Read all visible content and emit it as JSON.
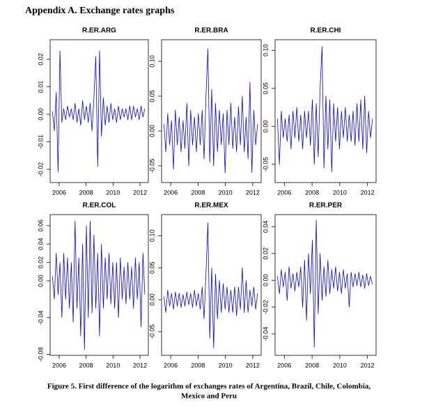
{
  "title": "Appendix A. Exchange rates graphs",
  "caption_lines": [
    "Figure 5. First difference of the logarithm of exchanges rates of Argentina, Brazil, Chile, Colombia,",
    "Mexico and Peru"
  ],
  "chart_data": [
    {
      "type": "line",
      "title": "R.ER.ARG",
      "color": "#0000ff",
      "xlim": [
        2005.33,
        2012.62
      ],
      "xticks": [
        2006,
        2008,
        2010,
        2012
      ],
      "ylim": [
        -0.0248,
        0.0271
      ],
      "yticks": [
        -0.02,
        -0.01,
        {
          "value": 0,
          "label": "0.00"
        },
        0.01,
        0.02
      ],
      "x": [
        2005.5,
        2005.64,
        2005.78,
        2005.92,
        2006.06,
        2006.2,
        2006.34,
        2006.48,
        2006.62,
        2006.76,
        2006.9,
        2007.04,
        2007.18,
        2007.32,
        2007.46,
        2007.6,
        2007.74,
        2007.88,
        2008.02,
        2008.16,
        2008.3,
        2008.44,
        2008.58,
        2008.72,
        2008.86,
        2009.0,
        2009.14,
        2009.28,
        2009.42,
        2009.56,
        2009.7,
        2009.84,
        2009.98,
        2010.12,
        2010.26,
        2010.4,
        2010.54,
        2010.68,
        2010.82,
        2010.96,
        2011.1,
        2011.24,
        2011.38,
        2011.52,
        2011.66,
        2011.8,
        2011.94,
        2012.08,
        2012.22,
        2012.36
      ],
      "values": [
        0.001,
        -0.006,
        0.008,
        -0.021,
        0.023,
        -0.003,
        0.002,
        -0.002,
        0.003,
        -0.001,
        0.002,
        -0.002,
        0.004,
        -0.003,
        0.002,
        -0.004,
        0.005,
        -0.002,
        0.003,
        -0.003,
        0.004,
        -0.006,
        0.006,
        0.021,
        -0.019,
        0.023,
        -0.008,
        0.006,
        -0.004,
        0.003,
        -0.003,
        0.004,
        -0.002,
        0.002,
        -0.003,
        0.003,
        -0.002,
        0.002,
        -0.001,
        0.002,
        -0.002,
        0.003,
        -0.002,
        0.003,
        -0.001,
        0.002,
        -0.002,
        0.003,
        -0.001,
        0.002
      ]
    },
    {
      "type": "line",
      "title": "R.ER.BRA",
      "color": "#0000ff",
      "xlim": [
        2005.33,
        2012.62
      ],
      "xticks": [
        2006,
        2008,
        2010,
        2012
      ],
      "ylim": [
        -0.074,
        0.131
      ],
      "yticks": [
        -0.05,
        {
          "value": 0,
          "label": "0.00"
        },
        0.05,
        {
          "value": 0.1,
          "label": "0.10"
        }
      ],
      "x": [
        2005.5,
        2005.64,
        2005.78,
        2005.92,
        2006.06,
        2006.2,
        2006.34,
        2006.48,
        2006.62,
        2006.76,
        2006.9,
        2007.04,
        2007.18,
        2007.32,
        2007.46,
        2007.6,
        2007.74,
        2007.88,
        2008.02,
        2008.16,
        2008.3,
        2008.44,
        2008.58,
        2008.72,
        2008.86,
        2009.0,
        2009.14,
        2009.28,
        2009.42,
        2009.56,
        2009.7,
        2009.84,
        2009.98,
        2010.12,
        2010.26,
        2010.4,
        2010.54,
        2010.68,
        2010.82,
        2010.96,
        2011.1,
        2011.24,
        2011.38,
        2011.52,
        2011.66,
        2011.8,
        2011.94,
        2012.08,
        2012.22,
        2012.36
      ],
      "values": [
        0.01,
        -0.03,
        0.025,
        -0.02,
        0.015,
        -0.055,
        0.03,
        -0.02,
        0.02,
        -0.03,
        0.015,
        -0.025,
        0.04,
        -0.05,
        0.03,
        -0.02,
        0.02,
        -0.03,
        0.025,
        -0.02,
        0.03,
        -0.04,
        0.05,
        0.118,
        -0.045,
        0.06,
        -0.05,
        0.04,
        -0.03,
        0.03,
        -0.02,
        0.025,
        -0.06,
        0.03,
        -0.02,
        0.04,
        -0.025,
        0.02,
        -0.03,
        0.035,
        -0.02,
        0.05,
        -0.03,
        0.02,
        -0.04,
        0.07,
        -0.06,
        0.03,
        -0.02,
        0.01
      ]
    },
    {
      "type": "line",
      "title": "R.ER.CHI",
      "color": "#0000ff",
      "xlim": [
        2005.33,
        2012.62
      ],
      "xticks": [
        2006,
        2008,
        2010,
        2012
      ],
      "ylim": [
        -0.074,
        0.114
      ],
      "yticks": [
        -0.05,
        {
          "value": 0,
          "label": "0.00"
        },
        0.05,
        {
          "value": 0.1,
          "label": "0.10"
        }
      ],
      "x": [
        2005.5,
        2005.64,
        2005.78,
        2005.92,
        2006.06,
        2006.2,
        2006.34,
        2006.48,
        2006.62,
        2006.76,
        2006.9,
        2007.04,
        2007.18,
        2007.32,
        2007.46,
        2007.6,
        2007.74,
        2007.88,
        2008.02,
        2008.16,
        2008.3,
        2008.44,
        2008.58,
        2008.72,
        2008.86,
        2009.0,
        2009.14,
        2009.28,
        2009.42,
        2009.56,
        2009.7,
        2009.84,
        2009.98,
        2010.12,
        2010.26,
        2010.4,
        2010.54,
        2010.68,
        2010.82,
        2010.96,
        2011.1,
        2011.24,
        2011.38,
        2011.52,
        2011.66,
        2011.8,
        2011.94,
        2012.08,
        2012.22,
        2012.36
      ],
      "values": [
        0.01,
        -0.05,
        0.02,
        -0.015,
        0.01,
        -0.02,
        0.015,
        -0.03,
        0.02,
        -0.015,
        0.025,
        -0.02,
        0.015,
        -0.03,
        0.02,
        -0.015,
        0.02,
        -0.025,
        0.035,
        -0.05,
        0.03,
        -0.04,
        0.05,
        0.105,
        -0.055,
        0.04,
        -0.03,
        0.035,
        -0.06,
        0.03,
        -0.02,
        0.025,
        -0.03,
        0.02,
        -0.015,
        0.025,
        -0.02,
        0.015,
        -0.02,
        0.02,
        -0.025,
        0.03,
        -0.02,
        0.035,
        -0.03,
        0.04,
        -0.035,
        0.02,
        -0.015,
        0.01
      ]
    },
    {
      "type": "line",
      "title": "R.ER.COL",
      "color": "#0000ff",
      "xlim": [
        2005.33,
        2012.62
      ],
      "xticks": [
        2006,
        2008,
        2010,
        2012
      ],
      "ylim": [
        -0.081,
        0.072
      ],
      "yticks": [
        -0.08,
        -0.04,
        {
          "value": 0,
          "label": "0.00"
        },
        0.02,
        0.04,
        0.06
      ],
      "x": [
        2005.5,
        2005.64,
        2005.78,
        2005.92,
        2006.06,
        2006.2,
        2006.34,
        2006.48,
        2006.62,
        2006.76,
        2006.9,
        2007.04,
        2007.18,
        2007.32,
        2007.46,
        2007.6,
        2007.74,
        2007.88,
        2008.02,
        2008.16,
        2008.3,
        2008.44,
        2008.58,
        2008.72,
        2008.86,
        2009.0,
        2009.14,
        2009.28,
        2009.42,
        2009.56,
        2009.7,
        2009.84,
        2009.98,
        2010.12,
        2010.26,
        2010.4,
        2010.54,
        2010.68,
        2010.82,
        2010.96,
        2011.1,
        2011.24,
        2011.38,
        2011.52,
        2011.66,
        2011.8,
        2011.94,
        2012.08,
        2012.22,
        2012.36
      ],
      "values": [
        0.005,
        -0.02,
        0.03,
        -0.015,
        0.02,
        -0.04,
        0.03,
        -0.02,
        0.025,
        -0.03,
        0.02,
        -0.045,
        0.065,
        -0.03,
        0.025,
        -0.06,
        0.04,
        -0.075,
        0.06,
        -0.04,
        0.065,
        -0.035,
        0.05,
        -0.03,
        0.03,
        -0.06,
        0.04,
        -0.03,
        0.025,
        -0.02,
        0.03,
        -0.025,
        0.02,
        -0.03,
        0.02,
        -0.04,
        0.025,
        -0.02,
        0.015,
        -0.025,
        0.02,
        -0.02,
        0.015,
        -0.03,
        0.025,
        -0.02,
        0.02,
        -0.05,
        0.03,
        -0.015
      ]
    },
    {
      "type": "line",
      "title": "R.ER.MEX",
      "color": "#0000ff",
      "xlim": [
        2005.33,
        2012.62
      ],
      "xticks": [
        2006,
        2008,
        2010,
        2012
      ],
      "ylim": [
        -0.087,
        0.133
      ],
      "yticks": [
        -0.05,
        {
          "value": 0,
          "label": "0.00"
        },
        0.05,
        {
          "value": 0.1,
          "label": "0.10"
        }
      ],
      "x": [
        2005.5,
        2005.64,
        2005.78,
        2005.92,
        2006.06,
        2006.2,
        2006.34,
        2006.48,
        2006.62,
        2006.76,
        2006.9,
        2007.04,
        2007.18,
        2007.32,
        2007.46,
        2007.6,
        2007.74,
        2007.88,
        2008.02,
        2008.16,
        2008.3,
        2008.44,
        2008.58,
        2008.72,
        2008.86,
        2009.0,
        2009.14,
        2009.28,
        2009.42,
        2009.56,
        2009.7,
        2009.84,
        2009.98,
        2010.12,
        2010.26,
        2010.4,
        2010.54,
        2010.68,
        2010.82,
        2010.96,
        2011.1,
        2011.24,
        2011.38,
        2011.52,
        2011.66,
        2011.8,
        2011.94,
        2012.08,
        2012.22,
        2012.36
      ],
      "values": [
        0.005,
        -0.02,
        0.015,
        -0.01,
        0.01,
        -0.015,
        0.012,
        -0.01,
        0.01,
        -0.012,
        0.008,
        -0.01,
        0.012,
        -0.008,
        0.01,
        -0.012,
        0.015,
        -0.01,
        0.01,
        -0.015,
        0.02,
        -0.03,
        0.04,
        0.12,
        -0.06,
        0.05,
        -0.075,
        0.04,
        -0.03,
        0.03,
        -0.02,
        0.025,
        -0.015,
        0.02,
        -0.02,
        0.015,
        -0.02,
        0.02,
        -0.025,
        0.02,
        -0.015,
        0.05,
        -0.02,
        0.03,
        -0.02,
        0.015,
        -0.01,
        0.02,
        -0.015,
        0.01
      ]
    },
    {
      "type": "line",
      "title": "R.ER.PER",
      "color": "#0000ff",
      "xlim": [
        2005.33,
        2012.62
      ],
      "xticks": [
        2006,
        2008,
        2010,
        2012
      ],
      "ylim": [
        -0.056,
        0.049
      ],
      "yticks": [
        -0.04,
        -0.02,
        {
          "value": 0,
          "label": "0.00"
        },
        0.02,
        0.04
      ],
      "x": [
        2005.5,
        2005.64,
        2005.78,
        2005.92,
        2006.06,
        2006.2,
        2006.34,
        2006.48,
        2006.62,
        2006.76,
        2006.9,
        2007.04,
        2007.18,
        2007.32,
        2007.46,
        2007.6,
        2007.74,
        2007.88,
        2008.02,
        2008.16,
        2008.3,
        2008.44,
        2008.58,
        2008.72,
        2008.86,
        2009.0,
        2009.14,
        2009.28,
        2009.42,
        2009.56,
        2009.7,
        2009.84,
        2009.98,
        2010.12,
        2010.26,
        2010.4,
        2010.54,
        2010.68,
        2010.82,
        2010.96,
        2011.1,
        2011.24,
        2011.38,
        2011.52,
        2011.66,
        2011.8,
        2011.94,
        2012.08,
        2012.22,
        2012.36
      ],
      "values": [
        0.003,
        -0.01,
        0.008,
        -0.005,
        0.006,
        -0.015,
        0.01,
        -0.006,
        0.005,
        -0.008,
        0.006,
        -0.005,
        0.01,
        -0.02,
        0.015,
        -0.03,
        0.02,
        -0.01,
        0.03,
        -0.05,
        0.045,
        -0.025,
        0.02,
        -0.015,
        0.01,
        -0.012,
        0.015,
        -0.01,
        0.008,
        -0.006,
        0.01,
        -0.008,
        0.006,
        -0.01,
        0.008,
        -0.006,
        0.005,
        -0.02,
        0.006,
        -0.005,
        0.005,
        -0.004,
        0.006,
        -0.005,
        0.004,
        -0.006,
        0.005,
        -0.004,
        0.003,
        -0.003
      ]
    }
  ]
}
